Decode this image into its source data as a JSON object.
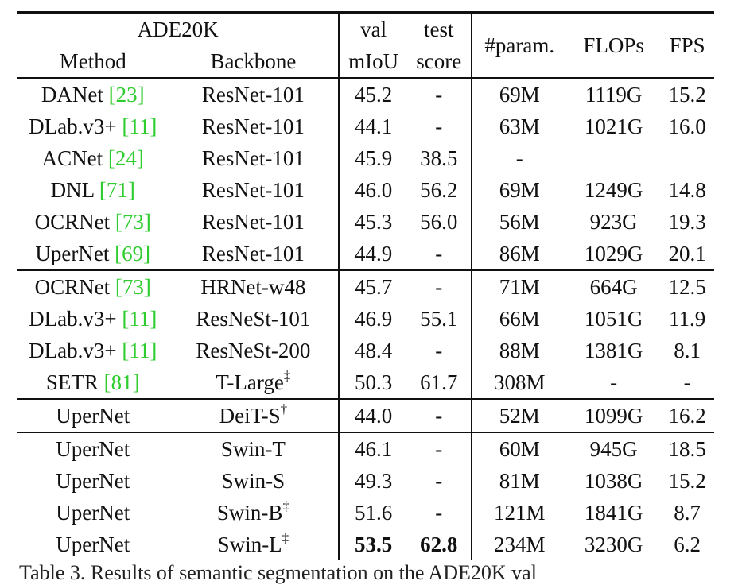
{
  "table": {
    "header": {
      "dataset": "ADE20K",
      "method": "Method",
      "backbone": "Backbone",
      "val_line1": "val",
      "val_line2": "mIoU",
      "test_line1": "test",
      "test_line2": "score",
      "param": "#param.",
      "flops": "FLOPs",
      "fps": "FPS"
    },
    "rows": [
      {
        "method": "DANet ",
        "ref": "[23]",
        "backbone": "ResNet-101",
        "sup": "",
        "miou": "45.2",
        "test": "-",
        "param": "69M",
        "flops": "1119G",
        "fps": "15.2"
      },
      {
        "method": "DLab.v3+ ",
        "ref": "[11]",
        "backbone": "ResNet-101",
        "sup": "",
        "miou": "44.1",
        "test": "-",
        "param": "63M",
        "flops": "1021G",
        "fps": "16.0"
      },
      {
        "method": "ACNet ",
        "ref": "[24]",
        "backbone": "ResNet-101",
        "sup": "",
        "miou": "45.9",
        "test": "38.5",
        "param": "-",
        "flops": "",
        "fps": ""
      },
      {
        "method": "DNL ",
        "ref": "[71]",
        "backbone": "ResNet-101",
        "sup": "",
        "miou": "46.0",
        "test": "56.2",
        "param": "69M",
        "flops": "1249G",
        "fps": "14.8"
      },
      {
        "method": "OCRNet ",
        "ref": "[73]",
        "backbone": "ResNet-101",
        "sup": "",
        "miou": "45.3",
        "test": "56.0",
        "param": "56M",
        "flops": "923G",
        "fps": "19.3"
      },
      {
        "method": "UperNet ",
        "ref": "[69]",
        "backbone": "ResNet-101",
        "sup": "",
        "miou": "44.9",
        "test": "-",
        "param": "86M",
        "flops": "1029G",
        "fps": "20.1"
      },
      {
        "method": "OCRNet ",
        "ref": "[73]",
        "backbone": "HRNet-w48",
        "sup": "",
        "miou": "45.7",
        "test": "-",
        "param": "71M",
        "flops": "664G",
        "fps": "12.5"
      },
      {
        "method": "DLab.v3+ ",
        "ref": "[11]",
        "backbone": "ResNeSt-101",
        "sup": "",
        "miou": "46.9",
        "test": "55.1",
        "param": "66M",
        "flops": "1051G",
        "fps": "11.9"
      },
      {
        "method": "DLab.v3+ ",
        "ref": "[11]",
        "backbone": "ResNeSt-200",
        "sup": "",
        "miou": "48.4",
        "test": "-",
        "param": "88M",
        "flops": "1381G",
        "fps": "8.1"
      },
      {
        "method": "SETR ",
        "ref": "[81]",
        "backbone": "T-Large",
        "sup": "‡",
        "miou": "50.3",
        "test": "61.7",
        "param": "308M",
        "flops": "-",
        "fps": "-"
      },
      {
        "method": "UperNet",
        "ref": "",
        "backbone": "DeiT-S",
        "sup": "†",
        "miou": "44.0",
        "test": "-",
        "param": "52M",
        "flops": "1099G",
        "fps": "16.2"
      },
      {
        "method": "UperNet",
        "ref": "",
        "backbone": "Swin-T",
        "sup": "",
        "miou": "46.1",
        "test": "-",
        "param": "60M",
        "flops": "945G",
        "fps": "18.5"
      },
      {
        "method": "UperNet",
        "ref": "",
        "backbone": "Swin-S",
        "sup": "",
        "miou": "49.3",
        "test": "-",
        "param": "81M",
        "flops": "1038G",
        "fps": "15.2"
      },
      {
        "method": "UperNet",
        "ref": "",
        "backbone": "Swin-B",
        "sup": "‡",
        "miou": "51.6",
        "test": "-",
        "param": "121M",
        "flops": "1841G",
        "fps": "8.7"
      },
      {
        "method": "UperNet",
        "ref": "",
        "backbone": "Swin-L",
        "sup": "‡",
        "miou": "53.5",
        "test": "62.8",
        "param": "234M",
        "flops": "3230G",
        "fps": "6.2"
      }
    ],
    "caption": "Table 3. Results of semantic segmentation on the ADE20K val"
  }
}
